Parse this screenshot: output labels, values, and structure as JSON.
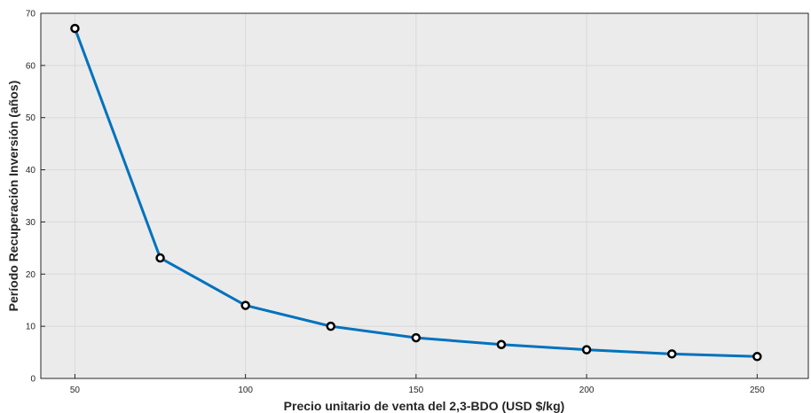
{
  "chart_data": {
    "type": "line",
    "title": "",
    "xlabel": "Precio unitario de venta del 2,3-BDO (USD $/kg)",
    "ylabel": "Período Recuperación Inversión (años)",
    "xlim": [
      40,
      265
    ],
    "ylim": [
      0,
      70
    ],
    "x_ticks": [
      50,
      100,
      150,
      200,
      250
    ],
    "y_ticks": [
      0,
      10,
      20,
      30,
      40,
      50,
      60,
      70
    ],
    "grid": true,
    "legend": "none",
    "series": [
      {
        "x": [
          50,
          75,
          100,
          125,
          150,
          175,
          200,
          225,
          250
        ],
        "y": [
          67.1,
          23.1,
          14.0,
          10.0,
          7.8,
          6.5,
          5.5,
          4.7,
          4.2
        ],
        "line_color": "#0072BD",
        "marker": "circle",
        "marker_color": "#000000",
        "marker_fill": "#ffffff"
      }
    ],
    "colors": {
      "plot_background": "#EBEBEB",
      "grid": "#DADADA",
      "axis": "#262626"
    }
  }
}
